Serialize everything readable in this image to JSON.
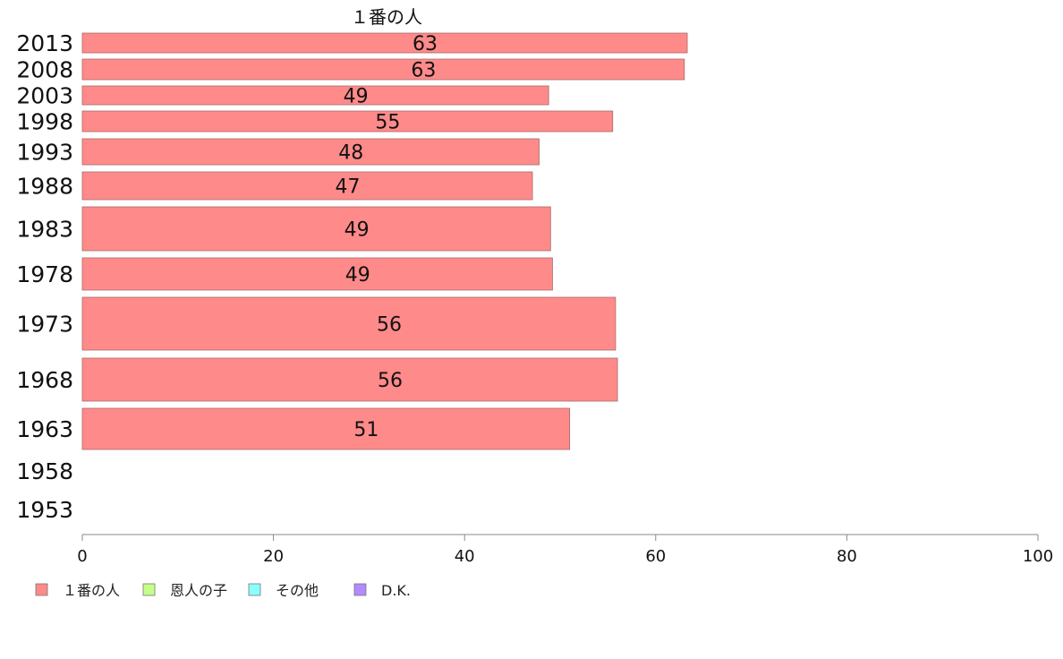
{
  "chart_data": {
    "type": "bar",
    "orientation": "horizontal",
    "title": "１番の人",
    "categories": [
      "2013",
      "2008",
      "2003",
      "1998",
      "1993",
      "1988",
      "1983",
      "1978",
      "1973",
      "1968",
      "1963",
      "1958",
      "1953"
    ],
    "series": [
      {
        "name": "１番の人",
        "color": "#ff8a8a",
        "values": [
          63.3,
          63,
          48.8,
          55.5,
          47.8,
          47.1,
          49,
          49.2,
          55.8,
          56,
          51,
          null,
          null
        ],
        "labels": [
          "63",
          "63",
          "49",
          "55",
          "48",
          "47",
          "49",
          "49",
          "56",
          "56",
          "51",
          "",
          ""
        ]
      }
    ],
    "xlim": [
      0,
      100
    ],
    "xticks": [
      0,
      20,
      40,
      60,
      80,
      100
    ],
    "legend": {
      "placement": "bottom-left",
      "items": [
        {
          "label": "１番の人",
          "color": "#ff8a8a"
        },
        {
          "label": "恩人の子",
          "color": "#c4ff8a"
        },
        {
          "label": "その他",
          "color": "#8affff"
        },
        {
          "label": "D.K.",
          "color": "#b38aff"
        }
      ]
    }
  }
}
